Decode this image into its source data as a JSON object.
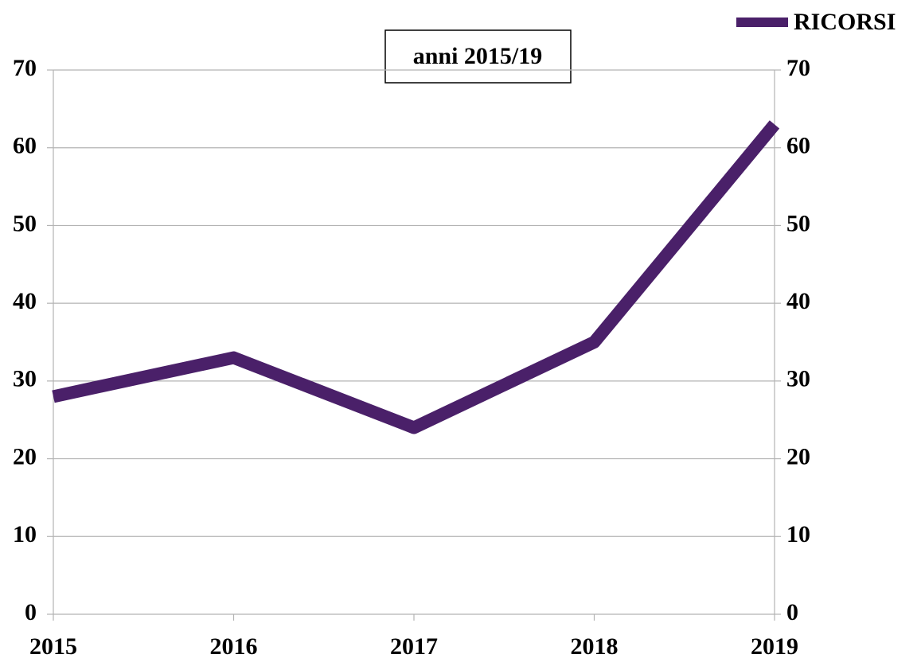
{
  "chart_data": {
    "type": "line",
    "title": "anni 2015/19",
    "x": [
      2015,
      2016,
      2017,
      2018,
      2019
    ],
    "series": [
      {
        "name": "RICORSI",
        "color": "#4a2069",
        "values": [
          28,
          33,
          24,
          35,
          63
        ]
      }
    ],
    "xlim": [
      2015,
      2019
    ],
    "xticks": [
      2015,
      2016,
      2017,
      2018,
      2019
    ],
    "ylim": [
      0,
      70
    ],
    "yticks": [
      0,
      10,
      20,
      30,
      40,
      50,
      60,
      70
    ],
    "y2lim": [
      0,
      70
    ],
    "y2ticks": [
      0,
      10,
      20,
      30,
      40,
      50,
      60,
      70
    ],
    "grid": true,
    "legend": "top-right"
  }
}
